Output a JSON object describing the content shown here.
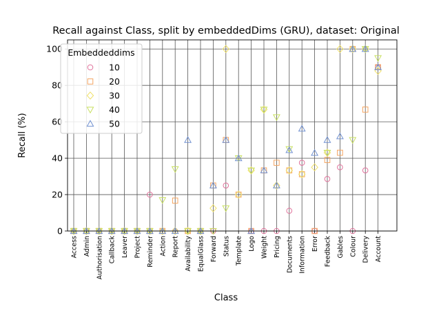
{
  "chart_data": {
    "type": "scatter",
    "title": "Recall against Class, split by embeddedDims (GRU), dataset: Original",
    "xlabel": "Class",
    "ylabel": "Recall (%)",
    "ylim": [
      0,
      105
    ],
    "yticks": [
      0,
      20,
      40,
      60,
      80,
      100
    ],
    "grid": true,
    "legend": {
      "title": "Embeddeddims",
      "placement": "top-left"
    },
    "categories": [
      "Access",
      "Admin",
      "Authorisation",
      "Callback",
      "Leaver",
      "Project",
      "Reminder",
      "Action",
      "Report",
      "Availability",
      "EqualGlass",
      "Forward",
      "Status",
      "Template",
      "Logo",
      "Weight",
      "Pricing",
      "Documents",
      "Information",
      "Error",
      "Feedback",
      "Gables",
      "Colour",
      "Delivery",
      "Account"
    ],
    "series": [
      {
        "name": "10",
        "color": "#e0709a",
        "marker": "circle",
        "values": [
          0,
          0,
          0,
          0,
          0,
          0,
          20,
          0,
          0,
          0,
          0,
          0,
          25,
          null,
          0,
          0,
          0,
          11.1,
          37.5,
          0,
          28.6,
          35,
          0,
          33.3,
          90
        ]
      },
      {
        "name": "20",
        "color": "#f4a460",
        "marker": "square",
        "values": [
          0,
          0,
          0,
          0,
          0,
          0,
          0,
          0,
          16.7,
          0,
          0,
          25,
          50,
          20,
          0,
          33.3,
          37.5,
          33.3,
          31.2,
          0,
          39,
          43,
          100,
          66.7,
          90
        ]
      },
      {
        "name": "30",
        "color": "#f0e068",
        "marker": "diamond",
        "values": [
          0,
          0,
          0,
          0,
          0,
          0,
          0,
          0,
          0,
          0,
          0,
          12.5,
          100,
          20,
          33.3,
          66.7,
          25,
          33.3,
          31.2,
          35,
          43,
          100,
          100,
          100,
          88
        ]
      },
      {
        "name": "40",
        "color": "#c8e060",
        "marker": "triangle-down",
        "values": [
          0,
          0,
          0,
          0,
          0,
          0,
          0,
          17,
          34,
          0,
          0,
          0,
          12.5,
          40,
          33.3,
          66.7,
          62.5,
          45,
          null,
          null,
          43,
          null,
          50,
          100,
          95
        ]
      },
      {
        "name": "50",
        "color": "#7090d0",
        "marker": "triangle-up",
        "values": [
          0,
          0,
          0,
          0,
          0,
          0,
          0,
          0,
          0,
          50,
          0,
          25,
          50,
          40,
          0,
          33.3,
          25,
          44.4,
          56.2,
          42.9,
          50,
          52,
          100,
          100,
          90
        ]
      }
    ]
  }
}
